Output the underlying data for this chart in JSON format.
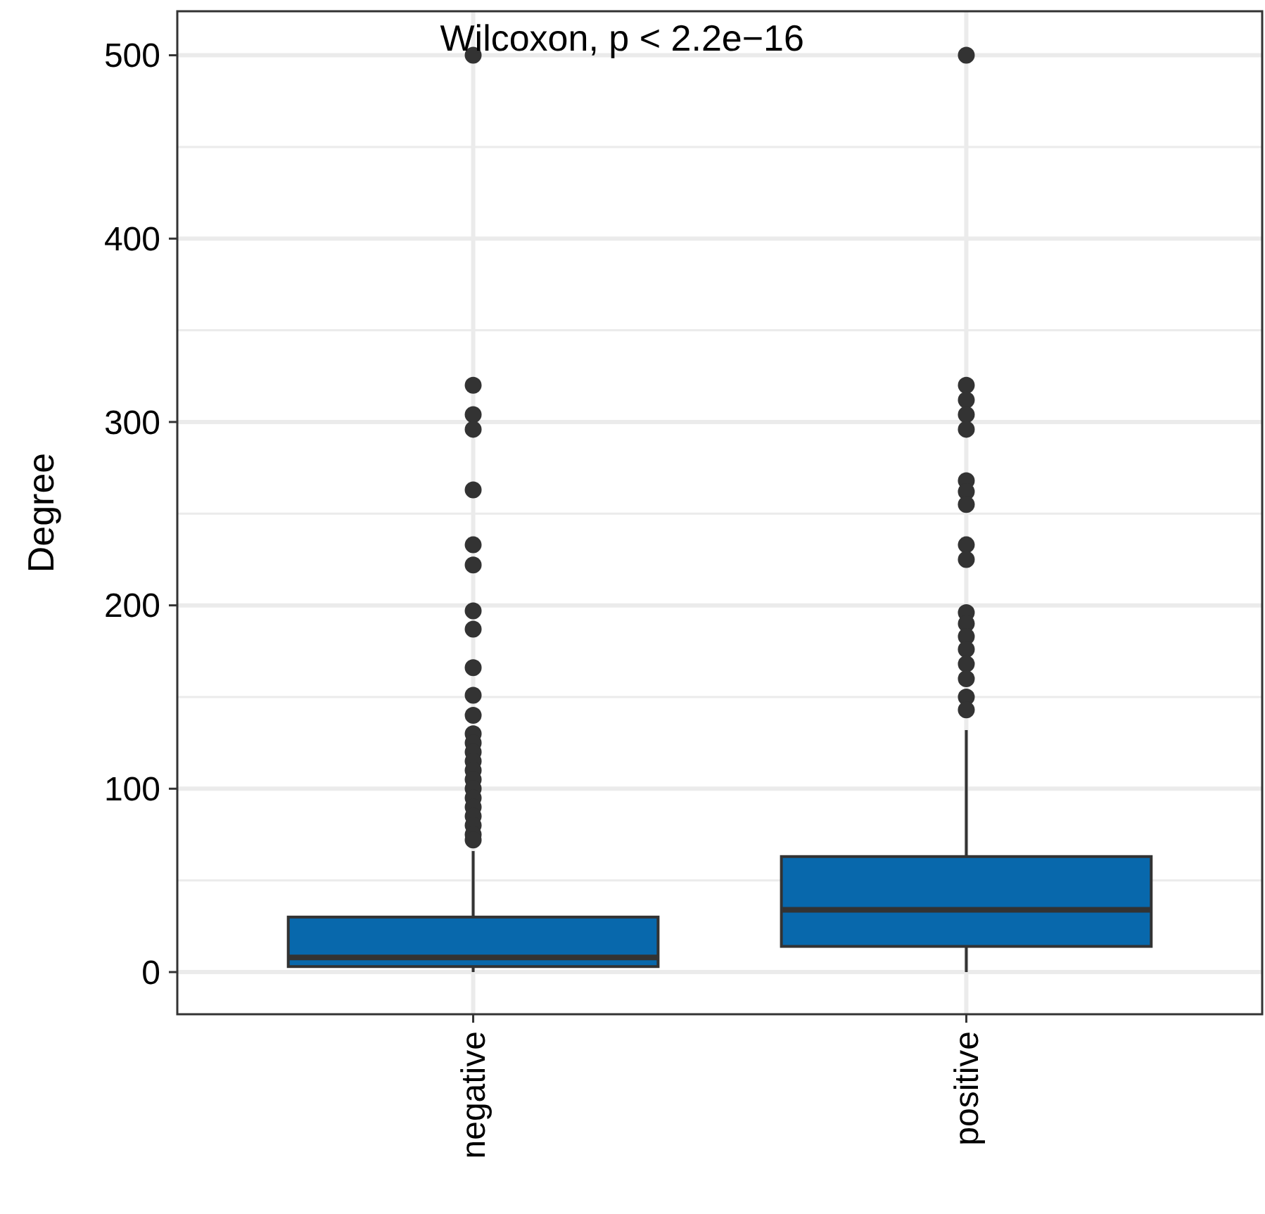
{
  "chart_data": {
    "type": "box",
    "ylabel": "Degree",
    "categories": [
      "negative",
      "positive"
    ],
    "annotations": [
      "Wilcoxon, p < 2.2e−16"
    ],
    "ylim": [
      -23,
      524
    ],
    "yticks": [
      0,
      100,
      200,
      300,
      400,
      500
    ],
    "grid": true,
    "series": [
      {
        "color": "#0868ac",
        "boxes": [
          {
            "low": 0,
            "q1": 3,
            "median": 8,
            "q3": 30,
            "high": 66,
            "outliers": [
              500,
              320,
              304,
              296,
              263,
              233,
              222,
              197,
              187,
              166,
              151,
              140,
              130,
              125,
              120,
              115,
              110,
              105,
              100,
              95,
              90,
              85,
              80,
              75,
              72
            ]
          },
          {
            "low": 0,
            "q1": 14,
            "median": 34,
            "q3": 63,
            "high": 132,
            "outliers": [
              500,
              320,
              312,
              304,
              296,
              268,
              262,
              255,
              233,
              225,
              196,
              190,
              183,
              176,
              168,
              160,
              150,
              143
            ]
          }
        ]
      }
    ]
  }
}
